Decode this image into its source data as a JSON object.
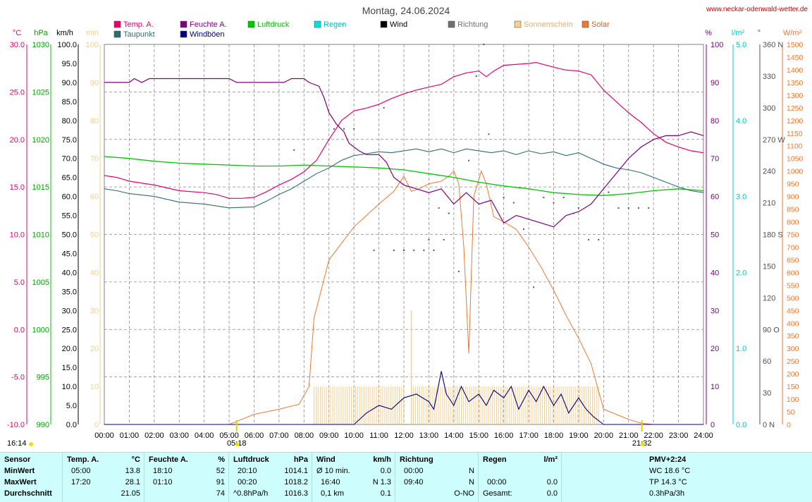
{
  "title": "Montag, 24.06.2024",
  "site": "www.neckar-odenwald-wetter.de",
  "legend": [
    {
      "name": "Temp. A.",
      "color": "#e8006e"
    },
    {
      "name": "Taupunkt",
      "color": "#2e6e6e"
    },
    {
      "name": "Feuchte A.",
      "color": "#800080"
    },
    {
      "name": "Windböen",
      "color": "#000080"
    },
    {
      "name": "Luftdruck",
      "color": "#00c800"
    },
    {
      "name": "Regen",
      "color": "#00e0e0"
    },
    {
      "name": "Wind",
      "color": "#000000"
    },
    {
      "name": "Richtung",
      "color": "#707070"
    },
    {
      "name": "Sonnenschein",
      "color": "#f5d090"
    },
    {
      "name": "Solar",
      "color": "#f07830"
    }
  ],
  "axes": {
    "temp": {
      "label": "°C",
      "color": "#e8006e",
      "ticks": [
        "30.0",
        "25.0",
        "20.0",
        "15.0",
        "10.0",
        "5.0",
        "0.0",
        "-5.0",
        "-10.0"
      ]
    },
    "pressure": {
      "label": "hPa",
      "color": "#00a000",
      "ticks": [
        "1030",
        "1025",
        "1020",
        "1015",
        "1010",
        "1005",
        "1000",
        "995",
        "990"
      ]
    },
    "wind": {
      "label": "km/h",
      "color": "#000000",
      "ticks": [
        "100.0",
        "95.0",
        "90.0",
        "85.0",
        "80.0",
        "75.0",
        "70.0",
        "65.0",
        "60.0",
        "55.0",
        "50.0",
        "45.0",
        "40.0",
        "35.0",
        "30.0",
        "25.0",
        "20.0",
        "15.0",
        "10.0",
        "5.0",
        "0.0"
      ]
    },
    "sunmin": {
      "label": "min",
      "color": "#f0d090",
      "ticks": [
        "100",
        "90",
        "80",
        "70",
        "60",
        "50",
        "40",
        "30",
        "20",
        "10",
        "0"
      ]
    },
    "humidity": {
      "label": "%",
      "color": "#800080",
      "ticks": [
        "100",
        "90",
        "80",
        "70",
        "60",
        "50",
        "40",
        "30",
        "20",
        "10",
        "0"
      ]
    },
    "rain": {
      "label": "l/m²",
      "color": "#00d0d0",
      "ticks": [
        "5.0",
        "4.0",
        "3.0",
        "2.0",
        "1.0",
        "0.0"
      ]
    },
    "direction": {
      "label": "°",
      "color": "#505050",
      "ticks": [
        "360 N",
        "330",
        "300",
        "270 W",
        "240",
        "210",
        "180 S",
        "150",
        "120",
        "90 O",
        "60",
        "30",
        "0 N"
      ]
    },
    "solar": {
      "label": "W/m²",
      "color": "#f07830",
      "ticks": [
        "1500",
        "1450",
        "1400",
        "1350",
        "1300",
        "1250",
        "1200",
        "1150",
        "1100",
        "1050",
        "1000",
        "950",
        "900",
        "850",
        "800",
        "750",
        "700",
        "650",
        "600",
        "550",
        "500",
        "450",
        "400",
        "350",
        "300",
        "250",
        "200",
        "150",
        "100",
        "50",
        "0"
      ]
    },
    "time": {
      "ticks": [
        "00:00",
        "01:00",
        "02:00",
        "03:00",
        "04:00",
        "05:00",
        "06:00",
        "07:00",
        "08:00",
        "09:00",
        "10:00",
        "11:00",
        "12:00",
        "13:00",
        "14:00",
        "15:00",
        "16:00",
        "17:00",
        "18:00",
        "19:00",
        "20:00",
        "21:00",
        "22:00",
        "23:00",
        "24:00"
      ]
    }
  },
  "markers": {
    "sunrise": "05:18",
    "sunset": "21:32",
    "left_time": "16:14"
  },
  "chart_data": {
    "type": "line",
    "x_unit": "hours",
    "temp": [
      [
        0,
        16.2
      ],
      [
        0.5,
        16.0
      ],
      [
        1,
        15.6
      ],
      [
        2,
        15.2
      ],
      [
        3,
        14.6
      ],
      [
        4,
        14.4
      ],
      [
        4.5,
        14.2
      ],
      [
        5,
        13.8
      ],
      [
        5.5,
        13.8
      ],
      [
        6,
        13.9
      ],
      [
        6.5,
        14.5
      ],
      [
        7,
        15.2
      ],
      [
        7.5,
        15.8
      ],
      [
        8,
        16.6
      ],
      [
        8.5,
        17.8
      ],
      [
        9,
        20.0
      ],
      [
        9.5,
        22.0
      ],
      [
        10,
        23.0
      ],
      [
        10.5,
        23.3
      ],
      [
        11,
        23.7
      ],
      [
        11.5,
        24.3
      ],
      [
        12,
        24.8
      ],
      [
        12.5,
        25.2
      ],
      [
        13,
        25.5
      ],
      [
        13.5,
        25.8
      ],
      [
        14,
        26.6
      ],
      [
        14.5,
        27.0
      ],
      [
        15,
        27.2
      ],
      [
        15.3,
        26.6
      ],
      [
        15.6,
        27.2
      ],
      [
        16,
        27.8
      ],
      [
        17,
        28.0
      ],
      [
        17.3,
        28.1
      ],
      [
        18,
        27.6
      ],
      [
        18.5,
        27.3
      ],
      [
        19,
        27.2
      ],
      [
        19.5,
        26.8
      ],
      [
        20,
        25.2
      ],
      [
        20.5,
        24.0
      ],
      [
        21,
        22.8
      ],
      [
        21.5,
        21.8
      ],
      [
        22,
        20.6
      ],
      [
        22.5,
        19.7
      ],
      [
        23,
        19.2
      ],
      [
        23.5,
        18.8
      ],
      [
        24,
        18.6
      ]
    ],
    "dewpoint": [
      [
        0,
        14.8
      ],
      [
        0.5,
        14.6
      ],
      [
        1,
        14.3
      ],
      [
        2,
        14.0
      ],
      [
        3,
        13.4
      ],
      [
        4,
        13.2
      ],
      [
        5,
        12.8
      ],
      [
        6,
        12.9
      ],
      [
        6.5,
        13.5
      ],
      [
        7,
        14.2
      ],
      [
        7.5,
        14.8
      ],
      [
        8,
        15.6
      ],
      [
        8.5,
        16.4
      ],
      [
        9,
        17.0
      ],
      [
        9.5,
        17.8
      ],
      [
        10,
        18.3
      ],
      [
        10.5,
        18.5
      ],
      [
        11,
        18.7
      ],
      [
        11.5,
        18.6
      ],
      [
        12,
        18.8
      ],
      [
        12.5,
        19.0
      ],
      [
        13,
        18.7
      ],
      [
        13.5,
        19.0
      ],
      [
        14,
        18.6
      ],
      [
        14.5,
        19.0
      ],
      [
        15,
        18.8
      ],
      [
        15.5,
        18.6
      ],
      [
        16,
        18.8
      ],
      [
        16.5,
        18.4
      ],
      [
        17,
        18.8
      ],
      [
        17.5,
        18.5
      ],
      [
        18,
        18.7
      ],
      [
        18.5,
        18.3
      ],
      [
        19,
        18.6
      ],
      [
        19.5,
        18.0
      ],
      [
        20,
        17.4
      ],
      [
        20.5,
        17.0
      ],
      [
        21,
        16.8
      ],
      [
        21.5,
        16.5
      ],
      [
        22,
        16.0
      ],
      [
        22.5,
        15.5
      ],
      [
        23,
        15.0
      ],
      [
        23.5,
        14.6
      ],
      [
        24,
        14.4
      ]
    ],
    "humidity": [
      [
        0,
        90
      ],
      [
        1,
        90
      ],
      [
        1.2,
        91
      ],
      [
        1.5,
        90
      ],
      [
        1.8,
        91
      ],
      [
        5,
        91
      ],
      [
        5.3,
        90
      ],
      [
        7.2,
        90
      ],
      [
        7.5,
        91
      ],
      [
        8,
        91
      ],
      [
        8.2,
        90
      ],
      [
        8.6,
        89
      ],
      [
        8.8,
        86
      ],
      [
        9,
        82
      ],
      [
        9.3,
        79
      ],
      [
        9.6,
        77
      ],
      [
        9.8,
        74
      ],
      [
        10.2,
        72
      ],
      [
        10.5,
        71
      ],
      [
        11,
        71
      ],
      [
        11.3,
        69
      ],
      [
        11.6,
        65
      ],
      [
        12,
        63
      ],
      [
        12.5,
        62
      ],
      [
        13,
        61
      ],
      [
        13.5,
        62
      ],
      [
        14,
        58
      ],
      [
        14.5,
        61
      ],
      [
        15,
        58
      ],
      [
        15.5,
        59
      ],
      [
        16,
        53
      ],
      [
        16.5,
        55
      ],
      [
        17,
        54
      ],
      [
        17.5,
        53
      ],
      [
        18,
        52
      ],
      [
        18.5,
        55
      ],
      [
        19,
        56
      ],
      [
        19.5,
        58
      ],
      [
        20,
        62
      ],
      [
        20.5,
        66
      ],
      [
        21,
        70
      ],
      [
        21.5,
        73
      ],
      [
        22,
        75
      ],
      [
        22.5,
        76
      ],
      [
        23,
        76
      ],
      [
        23.5,
        77
      ],
      [
        24,
        76
      ]
    ],
    "pressure": [
      [
        0,
        1018.2
      ],
      [
        1,
        1018.0
      ],
      [
        2,
        1017.7
      ],
      [
        3,
        1017.5
      ],
      [
        4,
        1017.4
      ],
      [
        5,
        1017.3
      ],
      [
        6,
        1017.2
      ],
      [
        7,
        1017.2
      ],
      [
        8,
        1017.3
      ],
      [
        9,
        1017.2
      ],
      [
        10,
        1017.1
      ],
      [
        11,
        1017.0
      ],
      [
        12,
        1016.8
      ],
      [
        13,
        1016.4
      ],
      [
        14,
        1016.0
      ],
      [
        15,
        1015.5
      ],
      [
        16,
        1015.1
      ],
      [
        17,
        1014.8
      ],
      [
        18,
        1014.4
      ],
      [
        19,
        1014.2
      ],
      [
        20,
        1014.1
      ],
      [
        21,
        1014.3
      ],
      [
        22,
        1014.6
      ],
      [
        23,
        1014.8
      ],
      [
        24,
        1014.6
      ]
    ],
    "solar": [
      [
        0,
        0
      ],
      [
        5,
        0
      ],
      [
        5.5,
        20
      ],
      [
        6,
        40
      ],
      [
        7,
        60
      ],
      [
        7.8,
        80
      ],
      [
        8.2,
        150
      ],
      [
        8.4,
        420
      ],
      [
        9,
        650
      ],
      [
        10,
        780
      ],
      [
        11,
        870
      ],
      [
        11.6,
        920
      ],
      [
        12,
        980
      ],
      [
        12.3,
        920
      ],
      [
        12.6,
        930
      ],
      [
        13,
        950
      ],
      [
        13.5,
        960
      ],
      [
        13.8,
        980
      ],
      [
        14,
        1000
      ],
      [
        14.2,
        950
      ],
      [
        14.4,
        700
      ],
      [
        14.6,
        280
      ],
      [
        14.8,
        900
      ],
      [
        15.1,
        1000
      ],
      [
        15.3,
        950
      ],
      [
        15.6,
        820
      ],
      [
        16,
        800
      ],
      [
        16.5,
        770
      ],
      [
        17,
        700
      ],
      [
        17.5,
        620
      ],
      [
        18,
        530
      ],
      [
        18.5,
        430
      ],
      [
        19,
        340
      ],
      [
        19.5,
        240
      ],
      [
        20,
        60
      ],
      [
        20.5,
        40
      ],
      [
        21,
        20
      ],
      [
        21.5,
        5
      ],
      [
        22,
        0
      ],
      [
        24,
        0
      ]
    ],
    "wind_gusts": [
      [
        0,
        0
      ],
      [
        5,
        0
      ],
      [
        10,
        0
      ],
      [
        10.5,
        3
      ],
      [
        11,
        5
      ],
      [
        11.5,
        4
      ],
      [
        12,
        7
      ],
      [
        12.5,
        8
      ],
      [
        13,
        6
      ],
      [
        13.2,
        4
      ],
      [
        13.5,
        14
      ],
      [
        13.7,
        8
      ],
      [
        14,
        5
      ],
      [
        14.3,
        10
      ],
      [
        14.6,
        6
      ],
      [
        15,
        8
      ],
      [
        15.3,
        5
      ],
      [
        15.6,
        9
      ],
      [
        16,
        7
      ],
      [
        16.3,
        10
      ],
      [
        16.6,
        4
      ],
      [
        17,
        9
      ],
      [
        17.3,
        6
      ],
      [
        17.6,
        10
      ],
      [
        18,
        5
      ],
      [
        18.3,
        8
      ],
      [
        18.6,
        3
      ],
      [
        19,
        7
      ],
      [
        19.3,
        4
      ],
      [
        19.6,
        2
      ],
      [
        20,
        0
      ],
      [
        24,
        0
      ]
    ],
    "sunshine_hours": [
      8.4,
      12.0,
      12.3,
      19.8
    ],
    "sun_level": 10,
    "direction_dots": [
      [
        7.6,
        260
      ],
      [
        9.2,
        280
      ],
      [
        9.6,
        280
      ],
      [
        10,
        280
      ],
      [
        10.8,
        165
      ],
      [
        11.2,
        300
      ],
      [
        11.6,
        165
      ],
      [
        12,
        165
      ],
      [
        12.4,
        165
      ],
      [
        12.8,
        165
      ],
      [
        13,
        175
      ],
      [
        13.2,
        165
      ],
      [
        13.4,
        205
      ],
      [
        13.6,
        175
      ],
      [
        13.8,
        200
      ],
      [
        14.2,
        145
      ],
      [
        14.6,
        250
      ],
      [
        14.9,
        330
      ],
      [
        15.2,
        360
      ],
      [
        15.4,
        275
      ],
      [
        16,
        215
      ],
      [
        16.4,
        210
      ],
      [
        16.8,
        185
      ],
      [
        17.2,
        130
      ],
      [
        17.6,
        215
      ],
      [
        18,
        210
      ],
      [
        18.4,
        215
      ],
      [
        18.8,
        200
      ],
      [
        19,
        205
      ],
      [
        19.4,
        175
      ],
      [
        19.8,
        175
      ],
      [
        20.2,
        220
      ],
      [
        20.6,
        205
      ],
      [
        21,
        205
      ],
      [
        21.4,
        205
      ],
      [
        21.8,
        205
      ]
    ]
  },
  "summary": {
    "sensor": {
      "title": "Sensor",
      "min": "MinWert",
      "max": "MaxWert",
      "avg": "Durchschnitt"
    },
    "temp": {
      "title": "Temp. A.",
      "unit": "°C",
      "min_t": "05:00",
      "min_v": "13.8",
      "max_t": "17:20",
      "max_v": "28.1",
      "avg": "21.05"
    },
    "hum": {
      "title": "Feuchte A.",
      "unit": "%",
      "min_t": "18:10",
      "min_v": "52",
      "max_t": "01:10",
      "max_v": "91",
      "avg": "74"
    },
    "press": {
      "title": "Luftdruck",
      "unit": "hPa",
      "min_t": "20:10",
      "min_v": "1014.1",
      "max_t": "00:20",
      "max_v": "1018.2",
      "avg_l": "^0.8hPa/h",
      "avg": "1016.3"
    },
    "wind": {
      "title": "Wind",
      "unit": "km/h",
      "min_t": "Ø 10 min.",
      "min_v": "0.0",
      "max_t": "16:40",
      "max_v": "N 1.3",
      "avg_l": "0,1 km",
      "avg": "0.1"
    },
    "dir": {
      "title": "Richtung",
      "min_t": "00:00",
      "min_v": "N",
      "max_t": "09:40",
      "max_v": "N",
      "avg": "O-NO"
    },
    "rain": {
      "title": "Regen",
      "unit": "l/m²",
      "max_t": "00:00",
      "max_v": "0.0",
      "avg_l": "Gesamt:",
      "avg": "0.0"
    },
    "pmv": {
      "title": "PMV+2:24",
      "wc": "WC 18.6 °C",
      "tp": "TP 14.3 °C",
      "trend": "0.3hPa/3h"
    }
  }
}
